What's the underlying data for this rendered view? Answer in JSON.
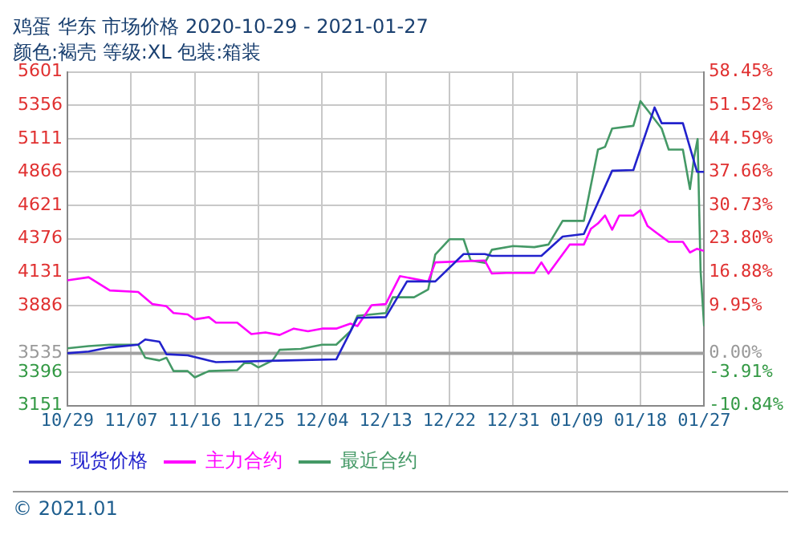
{
  "chart_data": {
    "type": "line",
    "title": "鸡蛋 华东 市场价格 2020-10-29 - 2021-01-27",
    "subtitle": "颜色:褐壳 等级:XL 包装:箱装",
    "xlim": [
      "2020-10-29",
      "2021-01-27"
    ],
    "xticks": [
      {
        "value": "2020-10-29",
        "label": "10/29"
      },
      {
        "value": "2020-11-07",
        "label": "11/07"
      },
      {
        "value": "2020-11-16",
        "label": "11/16"
      },
      {
        "value": "2020-11-25",
        "label": "11/25"
      },
      {
        "value": "2020-12-04",
        "label": "12/04"
      },
      {
        "value": "2020-12-13",
        "label": "12/13"
      },
      {
        "value": "2020-12-22",
        "label": "12/22"
      },
      {
        "value": "2020-12-31",
        "label": "12/31"
      },
      {
        "value": "2021-01-09",
        "label": "01/09"
      },
      {
        "value": "2021-01-18",
        "label": "01/18"
      },
      {
        "value": "2021-01-27",
        "label": "01/27"
      }
    ],
    "ylim": [
      3151,
      5601
    ],
    "yticks": [
      3151,
      3396,
      3535,
      3886,
      4131,
      4376,
      4621,
      4866,
      5111,
      5356,
      5601
    ],
    "y2lim": [
      -10.84,
      58.45
    ],
    "y2ticks": [
      {
        "value": -10.84,
        "label": "-10.84%"
      },
      {
        "value": -3.91,
        "label": "-3.91%"
      },
      {
        "value": 0,
        "label": "0.00%"
      },
      {
        "value": 9.95,
        "label": "9.95%"
      },
      {
        "value": 16.88,
        "label": "16.88%"
      },
      {
        "value": 23.8,
        "label": "23.80%"
      },
      {
        "value": 30.73,
        "label": "30.73%"
      },
      {
        "value": 37.66,
        "label": "37.66%"
      },
      {
        "value": 44.59,
        "label": "44.59%"
      },
      {
        "value": 51.52,
        "label": "51.52%"
      },
      {
        "value": 58.45,
        "label": "58.45%"
      }
    ],
    "ref_lines": [
      {
        "axis": "y",
        "value": 3535,
        "color": "#a0a0a0"
      }
    ],
    "grid": true,
    "legend": "bottom",
    "line_style": "solid",
    "marker": "none",
    "annotations": [
      "© 2021.01"
    ],
    "series": [
      {
        "name": "现货价格",
        "color": "#2222cc",
        "x": [
          "2020-10-29",
          "2020-11-01",
          "2020-11-04",
          "2020-11-08",
          "2020-11-09",
          "2020-11-11",
          "2020-11-12",
          "2020-11-15",
          "2020-11-18",
          "2020-11-19",
          "2020-11-29",
          "2020-12-06",
          "2020-12-09",
          "2020-12-13",
          "2020-12-16",
          "2020-12-20",
          "2020-12-24",
          "2020-12-27",
          "2020-12-28",
          "2021-01-04",
          "2021-01-07",
          "2021-01-10",
          "2021-01-14",
          "2021-01-17",
          "2021-01-20",
          "2021-01-21",
          "2021-01-24",
          "2021-01-26",
          "2021-01-27"
        ],
        "values": [
          3535,
          3548,
          3578,
          3598,
          3636,
          3620,
          3528,
          3520,
          3482,
          3470,
          3482,
          3490,
          3795,
          3800,
          4062,
          4062,
          4263,
          4263,
          4250,
          4250,
          4391,
          4410,
          4875,
          4880,
          5340,
          5224,
          5224,
          4867,
          4867
        ]
      },
      {
        "name": "主力合约",
        "color": "#ff00ff",
        "x": [
          "2020-10-29",
          "2020-11-01",
          "2020-11-04",
          "2020-11-08",
          "2020-11-10",
          "2020-11-12",
          "2020-11-13",
          "2020-11-15",
          "2020-11-16",
          "2020-11-18",
          "2020-11-19",
          "2020-11-22",
          "2020-11-24",
          "2020-11-26",
          "2020-11-28",
          "2020-11-30",
          "2020-12-02",
          "2020-12-04",
          "2020-12-06",
          "2020-12-08",
          "2020-12-09",
          "2020-12-11",
          "2020-12-13",
          "2020-12-15",
          "2020-12-19",
          "2020-12-20",
          "2020-12-27",
          "2020-12-28",
          "2020-12-30",
          "2021-01-03",
          "2021-01-04",
          "2021-01-05",
          "2021-01-08",
          "2021-01-10",
          "2021-01-11",
          "2021-01-12",
          "2021-01-13",
          "2021-01-14",
          "2021-01-15",
          "2021-01-17",
          "2021-01-18",
          "2021-01-19",
          "2021-01-20",
          "2021-01-22",
          "2021-01-24",
          "2021-01-25",
          "2021-01-26",
          "2021-01-27"
        ],
        "values": [
          4070,
          4093,
          3996,
          3985,
          3896,
          3880,
          3830,
          3820,
          3784,
          3800,
          3760,
          3760,
          3676,
          3688,
          3669,
          3716,
          3696,
          3716,
          3716,
          3752,
          3735,
          3888,
          3896,
          4101,
          4062,
          4202,
          4216,
          4120,
          4125,
          4125,
          4202,
          4120,
          4333,
          4333,
          4449,
          4488,
          4546,
          4442,
          4546,
          4546,
          4585,
          4469,
          4430,
          4353,
          4353,
          4275,
          4302,
          4286
        ]
      },
      {
        "name": "最近合约",
        "color": "#449966",
        "x": [
          "2020-10-29",
          "2020-11-01",
          "2020-11-04",
          "2020-11-08",
          "2020-11-09",
          "2020-11-11",
          "2020-11-12",
          "2020-11-13",
          "2020-11-15",
          "2020-11-16",
          "2020-11-18",
          "2020-11-22",
          "2020-11-23",
          "2020-11-24",
          "2020-11-25",
          "2020-11-27",
          "2020-11-28",
          "2020-12-01",
          "2020-12-04",
          "2020-12-06",
          "2020-12-08",
          "2020-12-09",
          "2020-12-13",
          "2020-12-14",
          "2020-12-17",
          "2020-12-19",
          "2020-12-20",
          "2020-12-22",
          "2020-12-24",
          "2020-12-25",
          "2020-12-27",
          "2020-12-28",
          "2020-12-31",
          "2021-01-03",
          "2021-01-05",
          "2021-01-07",
          "2021-01-10",
          "2021-01-12",
          "2021-01-13",
          "2021-01-14",
          "2021-01-17",
          "2021-01-18",
          "2021-01-19",
          "2021-01-21",
          "2021-01-22",
          "2021-01-24",
          "2021-01-25",
          "2021-01-25T14:00",
          "2021-01-26T02:00",
          "2021-01-26T12:00",
          "2021-01-27"
        ],
        "values": [
          3571,
          3587,
          3598,
          3598,
          3502,
          3482,
          3502,
          3404,
          3404,
          3358,
          3404,
          3411,
          3462,
          3462,
          3431,
          3482,
          3560,
          3567,
          3598,
          3598,
          3696,
          3810,
          3830,
          3946,
          3946,
          4004,
          4260,
          4372,
          4372,
          4217,
          4198,
          4295,
          4322,
          4314,
          4333,
          4507,
          4507,
          5030,
          5050,
          5185,
          5205,
          5386,
          5320,
          5185,
          5030,
          5030,
          4740,
          4973,
          5108,
          4140,
          3734
        ]
      }
    ]
  }
}
